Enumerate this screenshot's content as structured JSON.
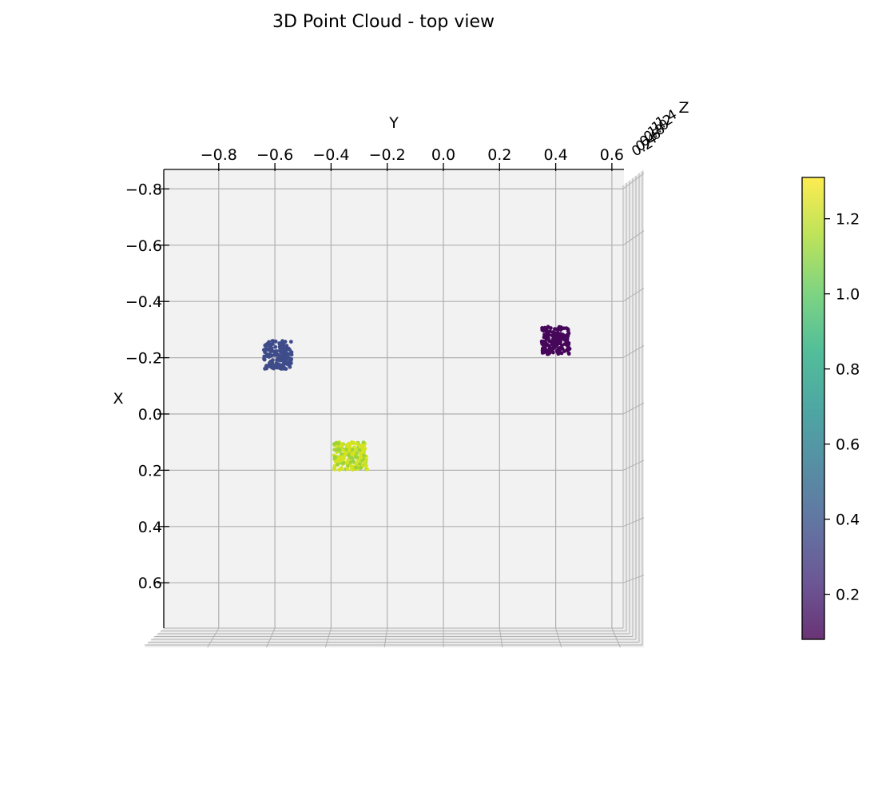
{
  "chart_data": {
    "type": "scatter",
    "title": "3D Point Cloud - top view",
    "xlabel": "Y",
    "ylabel": "X",
    "zlabel": "Z",
    "view": "top",
    "grid": true,
    "y_axis_ticks": [
      -0.8,
      -0.6,
      -0.4,
      -0.2,
      0.0,
      0.2,
      0.4,
      0.6
    ],
    "y_axis_tick_labels": [
      "−0.8",
      "−0.6",
      "−0.4",
      "−0.2",
      "0.0",
      "0.2",
      "0.4",
      "0.6"
    ],
    "x_axis_ticks": [
      -0.8,
      -0.6,
      -0.4,
      -0.2,
      0.0,
      0.2,
      0.4,
      0.6
    ],
    "x_axis_tick_labels": [
      "−0.8",
      "−0.6",
      "−0.4",
      "−0.2",
      "0.0",
      "0.2",
      "0.4",
      "0.6"
    ],
    "y_range": [
      -0.99,
      0.64
    ],
    "x_range": [
      -0.87,
      0.77
    ],
    "clusters": [
      {
        "center_y": -0.59,
        "center_x": -0.21,
        "spread_y": 0.05,
        "spread_x": 0.05,
        "z": 0.35,
        "color": "#3f4c8a"
      },
      {
        "center_y": -0.33,
        "center_x": 0.15,
        "spread_y": 0.06,
        "spread_x": 0.05,
        "z": 1.15,
        "color": "#d3e31f"
      },
      {
        "center_y": 0.4,
        "center_x": -0.26,
        "spread_y": 0.05,
        "spread_x": 0.05,
        "z": 0.1,
        "color": "#46075a"
      }
    ],
    "colorbar": {
      "min": 0.08,
      "max": 1.31,
      "ticks": [
        0.2,
        0.4,
        0.6,
        0.8,
        1.0,
        1.2
      ],
      "tick_labels": [
        "0.2",
        "0.4",
        "0.6",
        "0.8",
        "1.0",
        "1.2"
      ],
      "colormap": "viridis",
      "alpha": 0.8
    }
  }
}
